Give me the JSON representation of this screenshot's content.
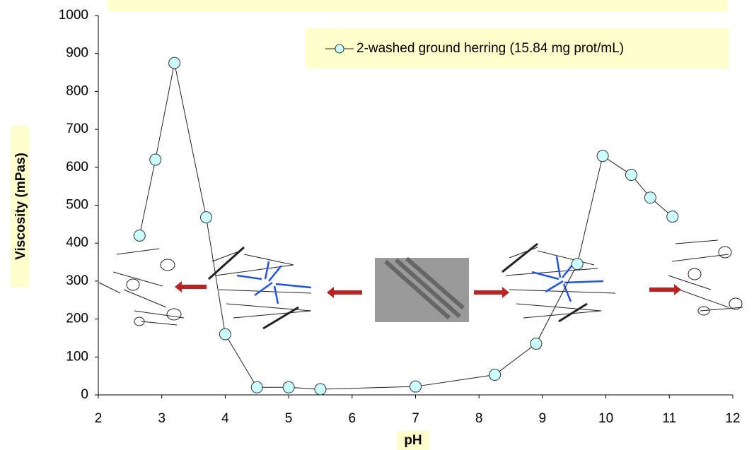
{
  "chart_data": {
    "type": "line",
    "x_label": "pH",
    "y_label": "Viscosity (mPas)",
    "series": [
      {
        "name": "2-washed ground herring (15.84 mg prot/mL)",
        "color": "#ccffff",
        "x": [
          2.65,
          2.9,
          3.2,
          3.7,
          4.0,
          4.5,
          5.0,
          5.5,
          7.0,
          8.25,
          8.9,
          9.55,
          9.95,
          10.4,
          10.7,
          11.05
        ],
        "values": [
          420,
          620,
          875,
          468,
          160,
          20,
          20,
          15,
          22,
          53,
          135,
          345,
          630,
          580,
          520,
          470
        ]
      }
    ],
    "xlim": [
      2,
      12
    ],
    "xticks": [
      2,
      3,
      4,
      5,
      6,
      7,
      8,
      9,
      10,
      11,
      12
    ],
    "ylim": [
      0,
      1000
    ],
    "yticks": [
      0,
      100,
      200,
      300,
      400,
      500,
      600,
      700,
      800,
      900,
      1000
    ],
    "legend": "upper right"
  }
}
